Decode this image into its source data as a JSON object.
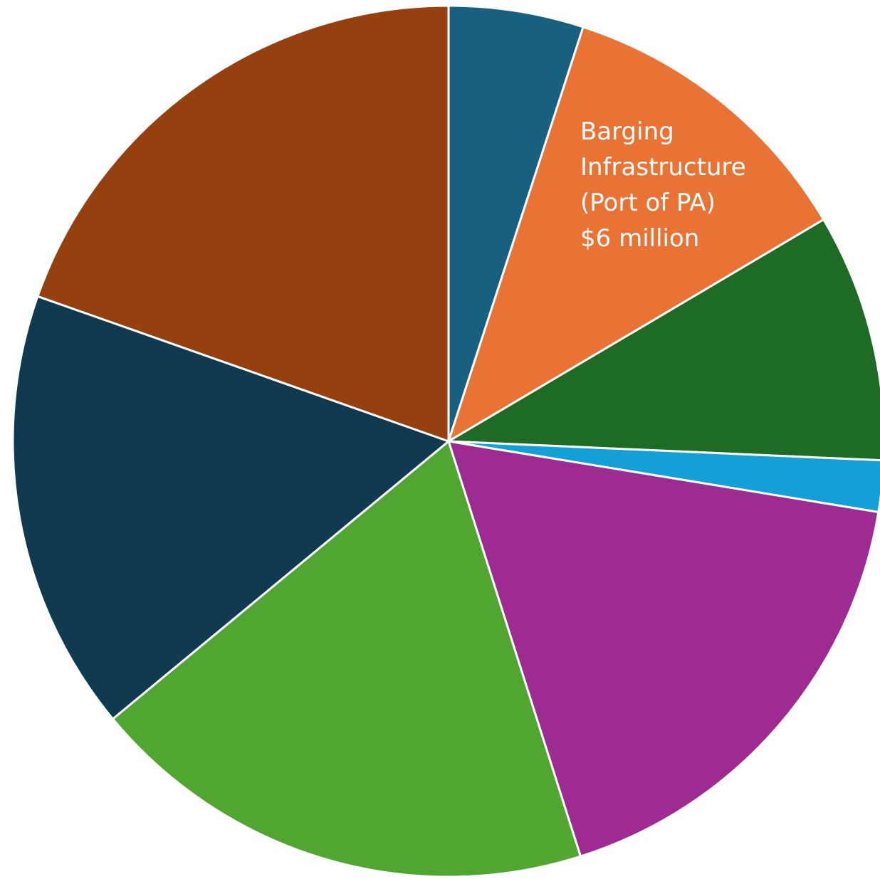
{
  "chart_data": {
    "type": "pie",
    "title": "",
    "start_angle_deg": 0,
    "direction": "clockwise",
    "slices": [
      {
        "label": "",
        "value": 5.0,
        "color": "#17607f",
        "label_lines": []
      },
      {
        "label": "Barging Infrastructure (Port of PA) $6 million",
        "value": 11.5,
        "color": "#e97334",
        "label_lines": [
          "Barging",
          "Infrastructure",
          "(Port of PA)",
          "$6 million"
        ]
      },
      {
        "label": "",
        "value": 9.2,
        "color": "#1d6b25",
        "label_lines": []
      },
      {
        "label": "",
        "value": 1.9,
        "color": "#12a0d7",
        "label_lines": []
      },
      {
        "label": "",
        "value": 17.5,
        "color": "#9e2b91",
        "label_lines": []
      },
      {
        "label": "",
        "value": 18.9,
        "color": "#51a531",
        "label_lines": []
      },
      {
        "label": "",
        "value": 16.4,
        "color": "#0f3a50",
        "label_lines": []
      },
      {
        "label": "",
        "value": 19.6,
        "color": "#964010",
        "label_lines": []
      }
    ]
  }
}
